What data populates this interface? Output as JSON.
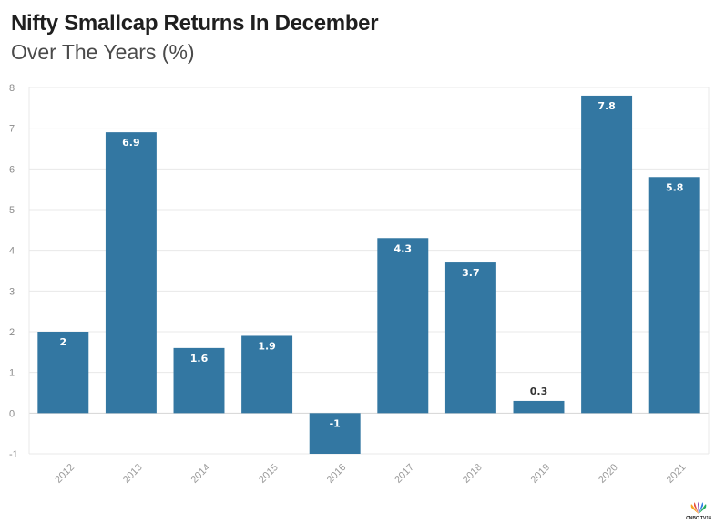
{
  "chart_data": {
    "type": "bar",
    "title": "Nifty Smallcap Returns In December",
    "subtitle": "Over The Years (%)",
    "categories": [
      "2012",
      "2013",
      "2014",
      "2015",
      "2016",
      "2017",
      "2018",
      "2019",
      "2020",
      "2021"
    ],
    "values": [
      2,
      6.9,
      1.6,
      1.9,
      -1,
      4.3,
      3.7,
      0.3,
      7.8,
      5.8
    ],
    "value_labels": [
      "2",
      "6.9",
      "1.6",
      "1.9",
      "-1",
      "4.3",
      "3.7",
      "0.3",
      "7.8",
      "5.8"
    ],
    "yticks": [
      "-1",
      "0",
      "1",
      "2",
      "3",
      "4",
      "5",
      "6",
      "7",
      "8"
    ],
    "ylim": [
      -1,
      8
    ],
    "xlabel": "",
    "ylabel": "",
    "grid": true,
    "legend": "none",
    "bar_color": "#3377a2",
    "label_color_inside": "#ffffff",
    "label_color_outside": "#333333"
  },
  "logo": {
    "text": "CNBC TV18",
    "icon": "peacock-logo-icon"
  }
}
